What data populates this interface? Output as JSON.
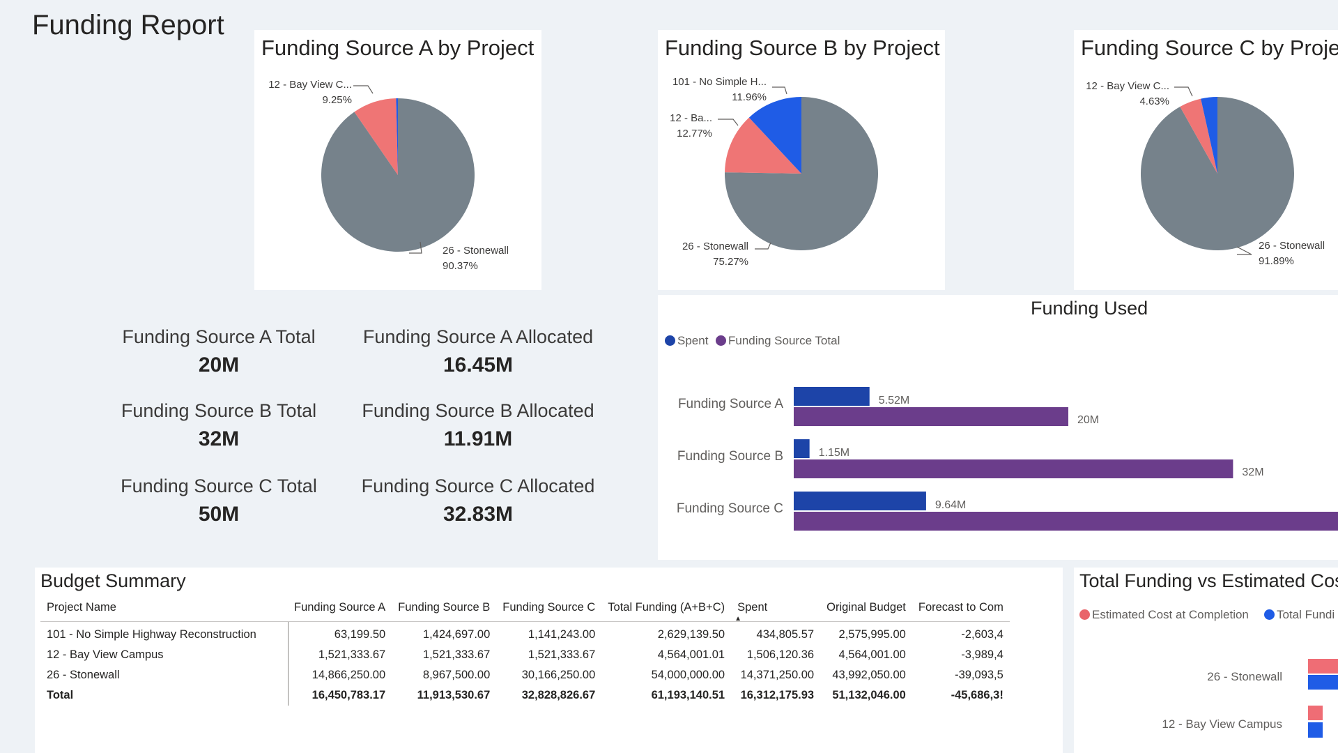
{
  "page": {
    "title": "Funding Report"
  },
  "colors": {
    "grey": "#76828b",
    "salmon": "#ef7575",
    "blue": "#1f5ce6",
    "navy": "#1d44a8",
    "purple": "#6b3d8b",
    "red_dot": "#e9646a"
  },
  "pies": [
    {
      "title": "Funding Source A by Project",
      "slices": [
        {
          "label": "26 - Stonewall",
          "percent_label": "90.37%",
          "value": 90.37,
          "color": "grey"
        },
        {
          "label": "12 - Bay View C...",
          "percent_label": "9.25%",
          "value": 9.25,
          "color": "salmon"
        },
        {
          "label": "101 - No Simple Highway Reconstruction",
          "percent_label": "",
          "value": 0.38,
          "color": "blue"
        }
      ]
    },
    {
      "title": "Funding Source B by Project",
      "slices": [
        {
          "label": "26 - Stonewall",
          "percent_label": "75.27%",
          "value": 75.27,
          "color": "grey"
        },
        {
          "label": "12 - Ba...",
          "percent_label": "12.77%",
          "value": 12.77,
          "color": "salmon"
        },
        {
          "label": "101 - No Simple H...",
          "percent_label": "11.96%",
          "value": 11.96,
          "color": "blue"
        }
      ]
    },
    {
      "title": "Funding Source C by Proje",
      "slices": [
        {
          "label": "26 - Stonewall",
          "percent_label": "91.89%",
          "value": 91.89,
          "color": "grey"
        },
        {
          "label": "12 - Bay View C...",
          "percent_label": "4.63%",
          "value": 4.63,
          "color": "salmon"
        },
        {
          "label": "101 - No Simple Highway Reconstruction",
          "percent_label": "",
          "value": 3.48,
          "color": "blue"
        }
      ]
    }
  ],
  "kpis": [
    {
      "label": "Funding Source A Total",
      "value": "20M"
    },
    {
      "label": "Funding Source A Allocated",
      "value": "16.45M"
    },
    {
      "label": "Funding Source B Total",
      "value": "32M"
    },
    {
      "label": "Funding Source B Allocated",
      "value": "11.91M"
    },
    {
      "label": "Funding Source C Total",
      "value": "50M"
    },
    {
      "label": "Funding Source C Allocated",
      "value": "32.83M"
    }
  ],
  "funding_used": {
    "title": "Funding Used",
    "legend": [
      {
        "label": "Spent",
        "color": "navy"
      },
      {
        "label": "Funding Source Total",
        "color": "purple"
      }
    ],
    "categories": [
      "Funding Source A",
      "Funding Source B",
      "Funding Source C"
    ],
    "spent": [
      5.52,
      1.15,
      9.64
    ],
    "spent_labels": [
      "5.52M",
      "1.15M",
      "9.64M"
    ],
    "total": [
      20,
      32,
      50
    ],
    "total_labels": [
      "20M",
      "32M",
      ""
    ]
  },
  "budget_summary": {
    "title": "Budget Summary",
    "columns": [
      "Project Name",
      "Funding Source A",
      "Funding Source B",
      "Funding Source C",
      "Total Funding (A+B+C)",
      "Spent",
      "Original Budget",
      "Forecast to Com"
    ],
    "rows": [
      [
        "101 - No Simple Highway Reconstruction",
        "63,199.50",
        "1,424,697.00",
        "1,141,243.00",
        "2,629,139.50",
        "434,805.57",
        "2,575,995.00",
        "-2,603,4"
      ],
      [
        "12 - Bay View Campus",
        "1,521,333.67",
        "1,521,333.67",
        "1,521,333.67",
        "4,564,001.01",
        "1,506,120.36",
        "4,564,001.00",
        "-3,989,4"
      ],
      [
        "26 - Stonewall",
        "14,866,250.00",
        "8,967,500.00",
        "30,166,250.00",
        "54,000,000.00",
        "14,371,250.00",
        "43,992,050.00",
        "-39,093,5"
      ]
    ],
    "total": [
      "Total",
      "16,450,783.17",
      "11,913,530.67",
      "32,828,826.67",
      "61,193,140.51",
      "16,312,175.93",
      "51,132,046.00",
      "-45,686,3!"
    ]
  },
  "cost_vs_funding": {
    "title": "Total Funding vs Estimated Cost",
    "legend": [
      {
        "label": "Estimated Cost at Completion",
        "color": "red_dot"
      },
      {
        "label": "Total Fundi",
        "color": "blue"
      }
    ],
    "categories": [
      "26 - Stonewall",
      "12 - Bay View Campus"
    ]
  },
  "chart_data": [
    {
      "type": "pie",
      "title": "Funding Source A by Project",
      "categories": [
        "26 - Stonewall",
        "12 - Bay View C...",
        "101 - No Simple Highway Reconstruction"
      ],
      "values": [
        90.37,
        9.25,
        0.38
      ]
    },
    {
      "type": "pie",
      "title": "Funding Source B by Project",
      "categories": [
        "26 - Stonewall",
        "12 - Ba...",
        "101 - No Simple H..."
      ],
      "values": [
        75.27,
        12.77,
        11.96
      ]
    },
    {
      "type": "pie",
      "title": "Funding Source C by Proje",
      "categories": [
        "26 - Stonewall",
        "12 - Bay View C...",
        "101 - No Simple Highway Reconstruction"
      ],
      "values": [
        91.89,
        4.63,
        3.48
      ]
    },
    {
      "type": "bar",
      "title": "Funding Used",
      "orientation": "horizontal",
      "categories": [
        "Funding Source A",
        "Funding Source B",
        "Funding Source C"
      ],
      "series": [
        {
          "name": "Spent",
          "values": [
            5.52,
            1.15,
            9.64
          ]
        },
        {
          "name": "Funding Source Total",
          "values": [
            20,
            32,
            50
          ]
        }
      ],
      "unit": "M"
    }
  ]
}
